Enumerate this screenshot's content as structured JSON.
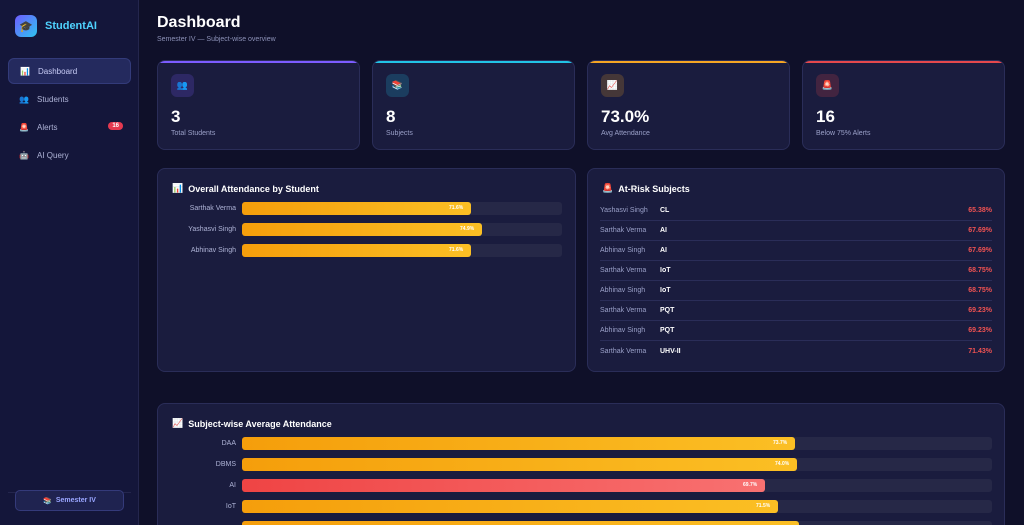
{
  "brand": {
    "name": "StudentAI",
    "logo_icon": "graduation-cap-icon"
  },
  "nav": [
    {
      "label": "Dashboard",
      "icon": "📊",
      "active": true
    },
    {
      "label": "Students",
      "icon": "👥",
      "active": false
    },
    {
      "label": "Alerts",
      "icon": "🚨",
      "active": false,
      "badge": "16"
    },
    {
      "label": "AI Query",
      "icon": "🤖",
      "active": false
    }
  ],
  "semester_pill": {
    "icon": "📚",
    "label": "Semester IV"
  },
  "header": {
    "title": "Dashboard",
    "subtitle": "Semester IV — Subject-wise overview"
  },
  "stats": [
    {
      "icon": "👥",
      "value": "3",
      "label": "Total Students",
      "accent": "#7c5cff"
    },
    {
      "icon": "📚",
      "value": "8",
      "label": "Subjects",
      "accent": "#22c3e6"
    },
    {
      "icon": "📈",
      "value": "73.0%",
      "label": "Avg Attendance",
      "accent": "#f5a524"
    },
    {
      "icon": "🚨",
      "value": "16",
      "label": "Below 75% Alerts",
      "accent": "#e5484d"
    }
  ],
  "student_chart": {
    "title": "Overall Attendance by Student",
    "icon": "📊",
    "rows": [
      {
        "name": "Sarthak Verma",
        "value": 71.6,
        "label": "71.6%"
      },
      {
        "name": "Yashasvi Singh",
        "value": 74.9,
        "label": "74.9%"
      },
      {
        "name": "Abhinav Singh",
        "value": 71.6,
        "label": "71.6%"
      }
    ]
  },
  "at_risk": {
    "title": "At-Risk Subjects",
    "icon": "🚨",
    "rows": [
      {
        "name": "Yashasvi Singh",
        "subject": "CL",
        "pct": "65.38%"
      },
      {
        "name": "Sarthak Verma",
        "subject": "AI",
        "pct": "67.69%"
      },
      {
        "name": "Abhinav Singh",
        "subject": "AI",
        "pct": "67.69%"
      },
      {
        "name": "Sarthak Verma",
        "subject": "IoT",
        "pct": "68.75%"
      },
      {
        "name": "Abhinav Singh",
        "subject": "IoT",
        "pct": "68.75%"
      },
      {
        "name": "Sarthak Verma",
        "subject": "PQT",
        "pct": "69.23%"
      },
      {
        "name": "Abhinav Singh",
        "subject": "PQT",
        "pct": "69.23%"
      },
      {
        "name": "Sarthak Verma",
        "subject": "UHV-II",
        "pct": "71.43%"
      }
    ]
  },
  "subject_chart": {
    "title": "Subject-wise Average Attendance",
    "icon": "📈",
    "rows": [
      {
        "name": "DAA",
        "value": 73.7,
        "label": "73.7%",
        "alert": false
      },
      {
        "name": "DBMS",
        "value": 74.0,
        "label": "74.0%",
        "alert": false
      },
      {
        "name": "AI",
        "value": 69.7,
        "label": "69.7%",
        "alert": true
      },
      {
        "name": "IoT",
        "value": 71.5,
        "label": "71.5%",
        "alert": false
      },
      {
        "name": "",
        "value": 74.3,
        "label": "",
        "alert": false
      }
    ]
  }
}
